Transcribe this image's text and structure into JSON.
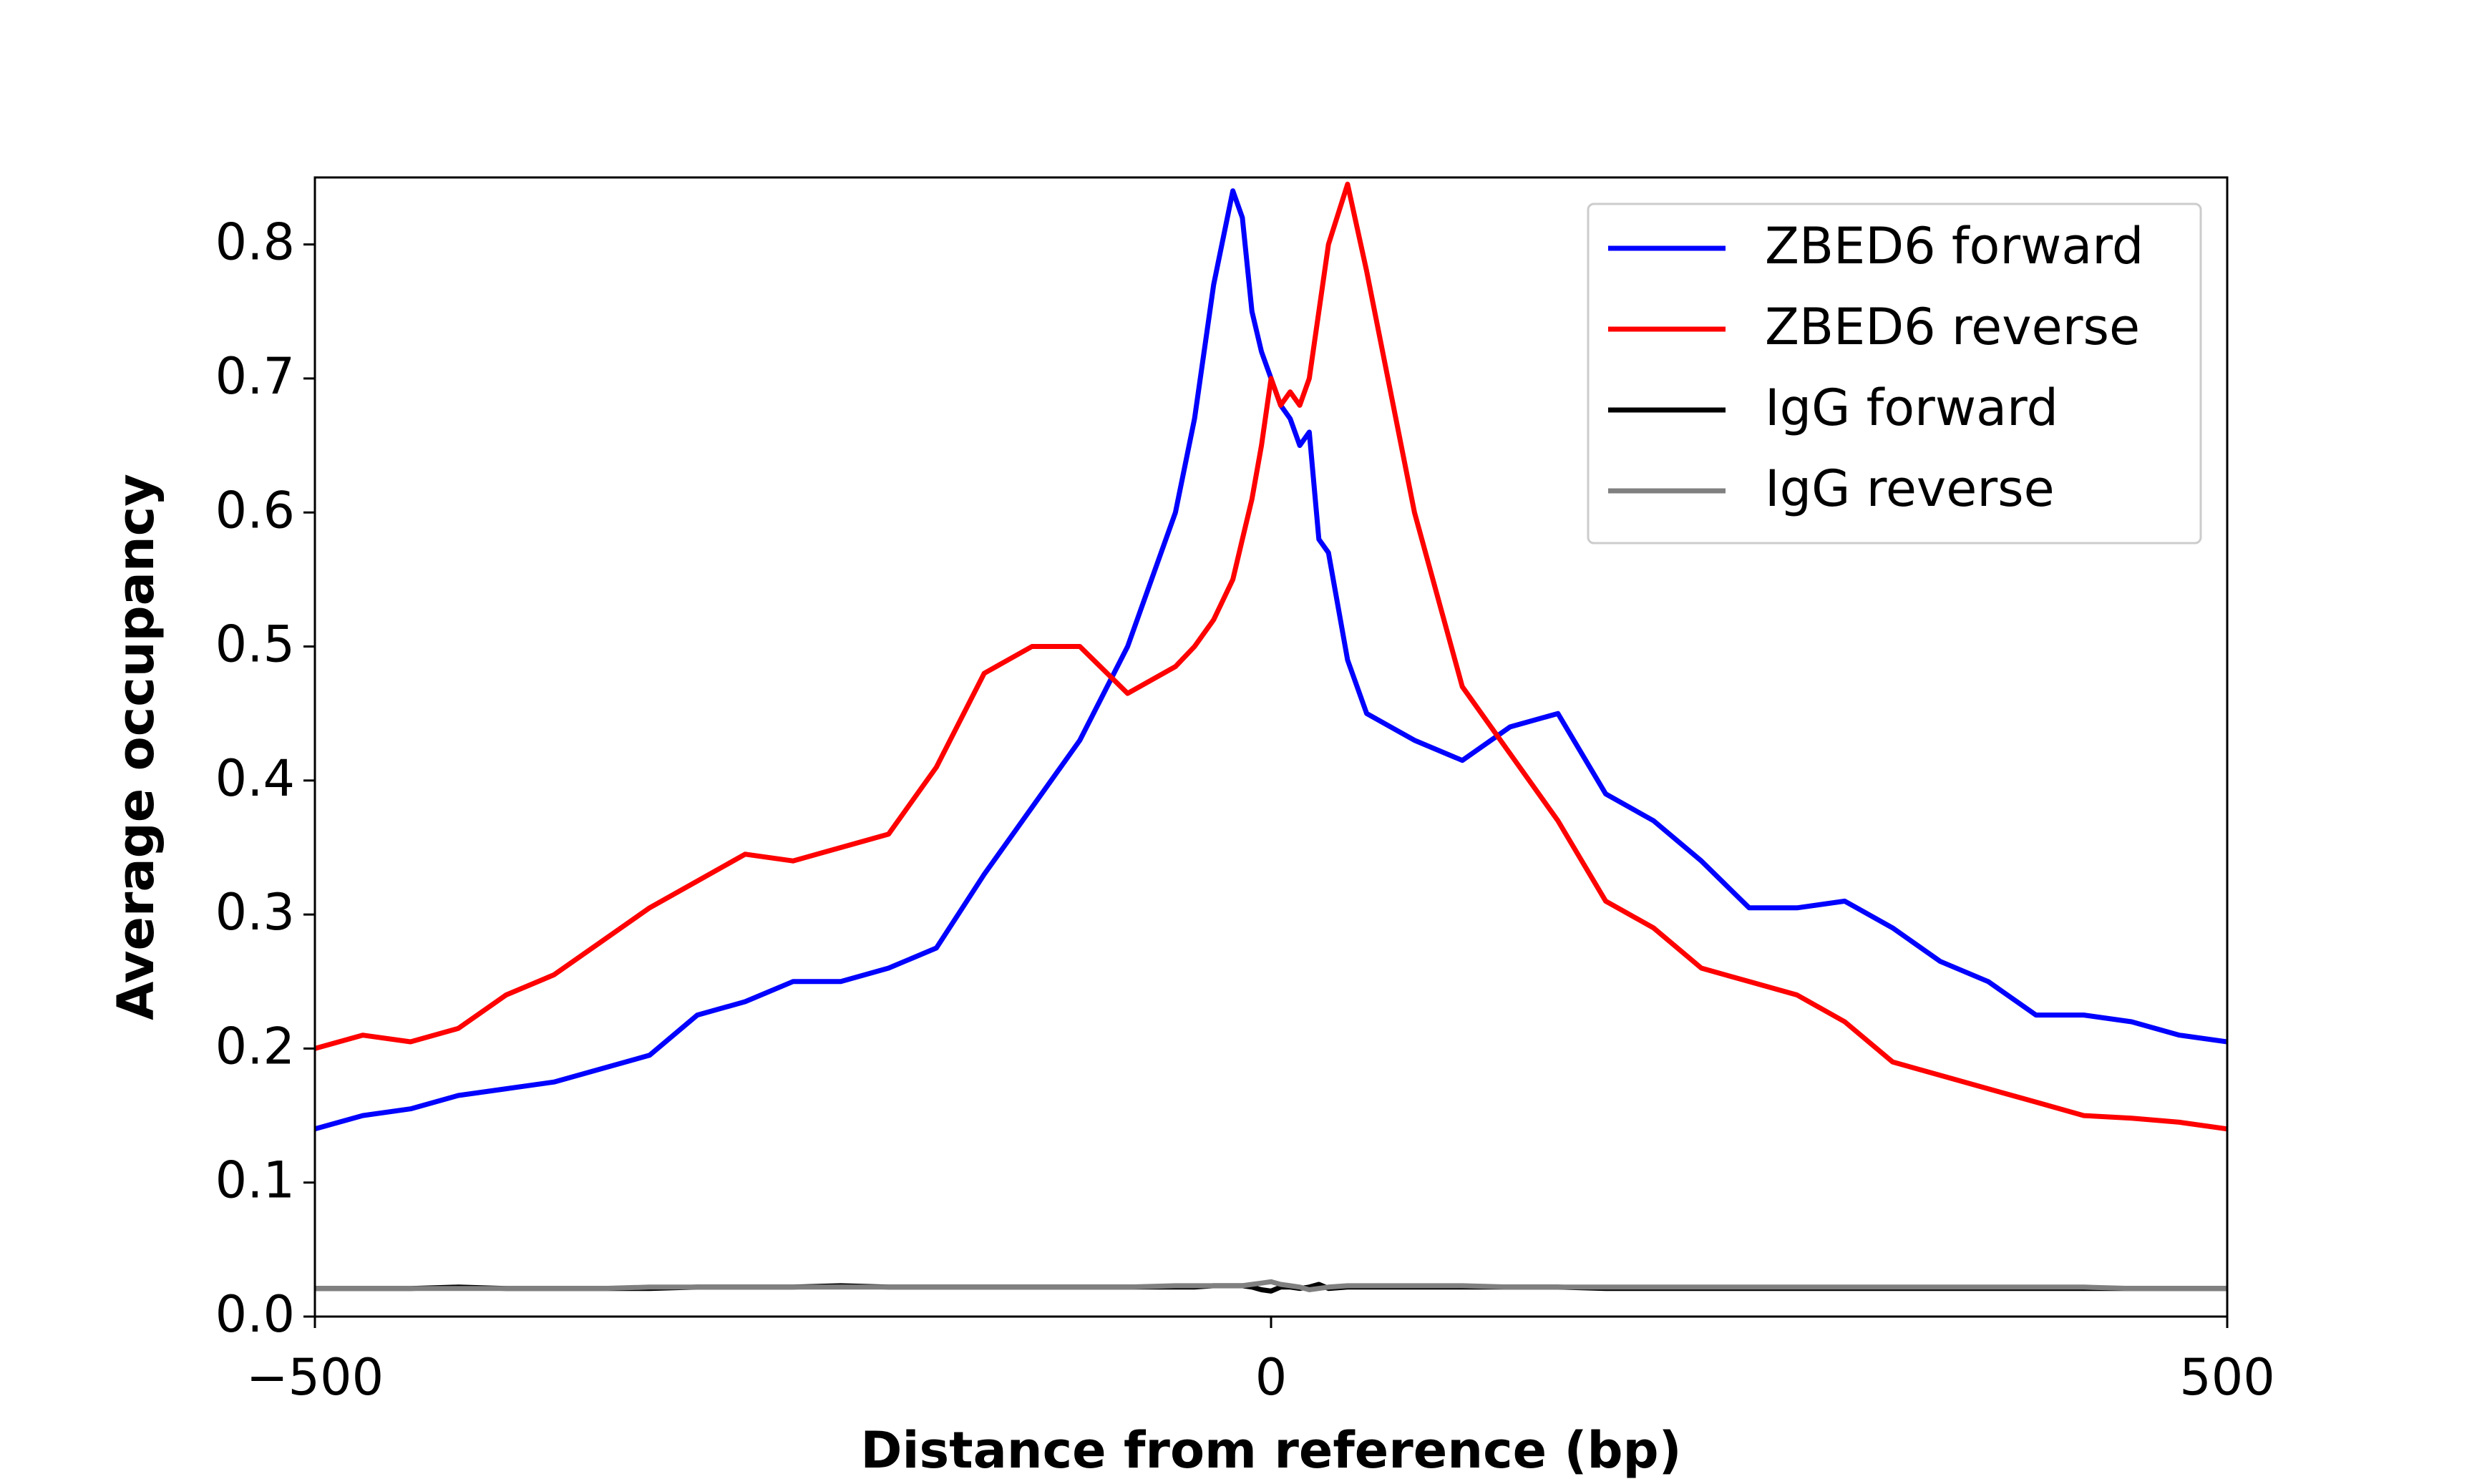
{
  "chart_data": {
    "type": "line",
    "xlabel": "Distance from reference (bp)",
    "ylabel": "Average occupancy",
    "x": [
      -500,
      -475,
      -450,
      -425,
      -400,
      -375,
      -350,
      -325,
      -300,
      -275,
      -250,
      -225,
      -200,
      -175,
      -150,
      -125,
      -100,
      -75,
      -50,
      -40,
      -30,
      -20,
      -15,
      -10,
      -5,
      0,
      5,
      10,
      15,
      20,
      25,
      30,
      40,
      50,
      75,
      100,
      125,
      150,
      175,
      200,
      225,
      250,
      275,
      300,
      325,
      350,
      375,
      400,
      425,
      450,
      475,
      500
    ],
    "series": [
      {
        "name": "ZBED6 forward",
        "color": "#0000ff",
        "values": [
          0.14,
          0.15,
          0.155,
          0.165,
          0.17,
          0.175,
          0.185,
          0.195,
          0.225,
          0.235,
          0.25,
          0.25,
          0.26,
          0.275,
          0.33,
          0.38,
          0.43,
          0.5,
          0.6,
          0.67,
          0.77,
          0.84,
          0.82,
          0.75,
          0.72,
          0.7,
          0.68,
          0.67,
          0.65,
          0.66,
          0.58,
          0.57,
          0.49,
          0.45,
          0.43,
          0.415,
          0.44,
          0.45,
          0.39,
          0.37,
          0.34,
          0.305,
          0.305,
          0.31,
          0.29,
          0.265,
          0.25,
          0.225,
          0.225,
          0.22,
          0.21,
          0.205
        ]
      },
      {
        "name": "ZBED6 reverse",
        "color": "#ff0000",
        "values": [
          0.2,
          0.21,
          0.205,
          0.215,
          0.24,
          0.255,
          0.28,
          0.305,
          0.325,
          0.345,
          0.34,
          0.35,
          0.36,
          0.41,
          0.48,
          0.5,
          0.5,
          0.465,
          0.485,
          0.5,
          0.52,
          0.55,
          0.58,
          0.61,
          0.65,
          0.7,
          0.68,
          0.69,
          0.68,
          0.7,
          0.75,
          0.8,
          0.845,
          0.78,
          0.6,
          0.47,
          0.42,
          0.37,
          0.31,
          0.29,
          0.26,
          0.25,
          0.24,
          0.22,
          0.19,
          0.18,
          0.17,
          0.16,
          0.15,
          0.148,
          0.145,
          0.14
        ]
      },
      {
        "name": "IgG forward",
        "color": "#000000",
        "values": [
          0.021,
          0.021,
          0.021,
          0.022,
          0.021,
          0.021,
          0.021,
          0.021,
          0.022,
          0.022,
          0.022,
          0.023,
          0.022,
          0.022,
          0.022,
          0.022,
          0.022,
          0.022,
          0.022,
          0.022,
          0.023,
          0.023,
          0.023,
          0.022,
          0.02,
          0.019,
          0.022,
          0.022,
          0.021,
          0.022,
          0.024,
          0.021,
          0.022,
          0.022,
          0.022,
          0.022,
          0.022,
          0.022,
          0.021,
          0.021,
          0.021,
          0.021,
          0.021,
          0.021,
          0.021,
          0.021,
          0.021,
          0.021,
          0.021,
          0.021,
          0.021,
          0.021
        ]
      },
      {
        "name": "IgG reverse",
        "color": "#808080",
        "values": [
          0.021,
          0.021,
          0.021,
          0.021,
          0.021,
          0.021,
          0.021,
          0.022,
          0.022,
          0.022,
          0.022,
          0.022,
          0.022,
          0.022,
          0.022,
          0.022,
          0.022,
          0.022,
          0.023,
          0.023,
          0.023,
          0.023,
          0.023,
          0.024,
          0.025,
          0.026,
          0.024,
          0.023,
          0.022,
          0.02,
          0.021,
          0.022,
          0.023,
          0.023,
          0.023,
          0.023,
          0.022,
          0.022,
          0.022,
          0.022,
          0.022,
          0.022,
          0.022,
          0.022,
          0.022,
          0.022,
          0.022,
          0.022,
          0.022,
          0.021,
          0.021,
          0.021
        ]
      }
    ],
    "xlim": [
      -500,
      500
    ],
    "ylim": [
      0,
      0.85
    ],
    "xticks": [
      {
        "value": -500,
        "label": "−500"
      },
      0,
      500
    ],
    "yticks": [
      {
        "value": 0,
        "label": "0.0"
      },
      0.1,
      0.2,
      0.3,
      0.4,
      0.5,
      0.6,
      0.7,
      0.8
    ],
    "grid": false,
    "legend": "upper right"
  }
}
